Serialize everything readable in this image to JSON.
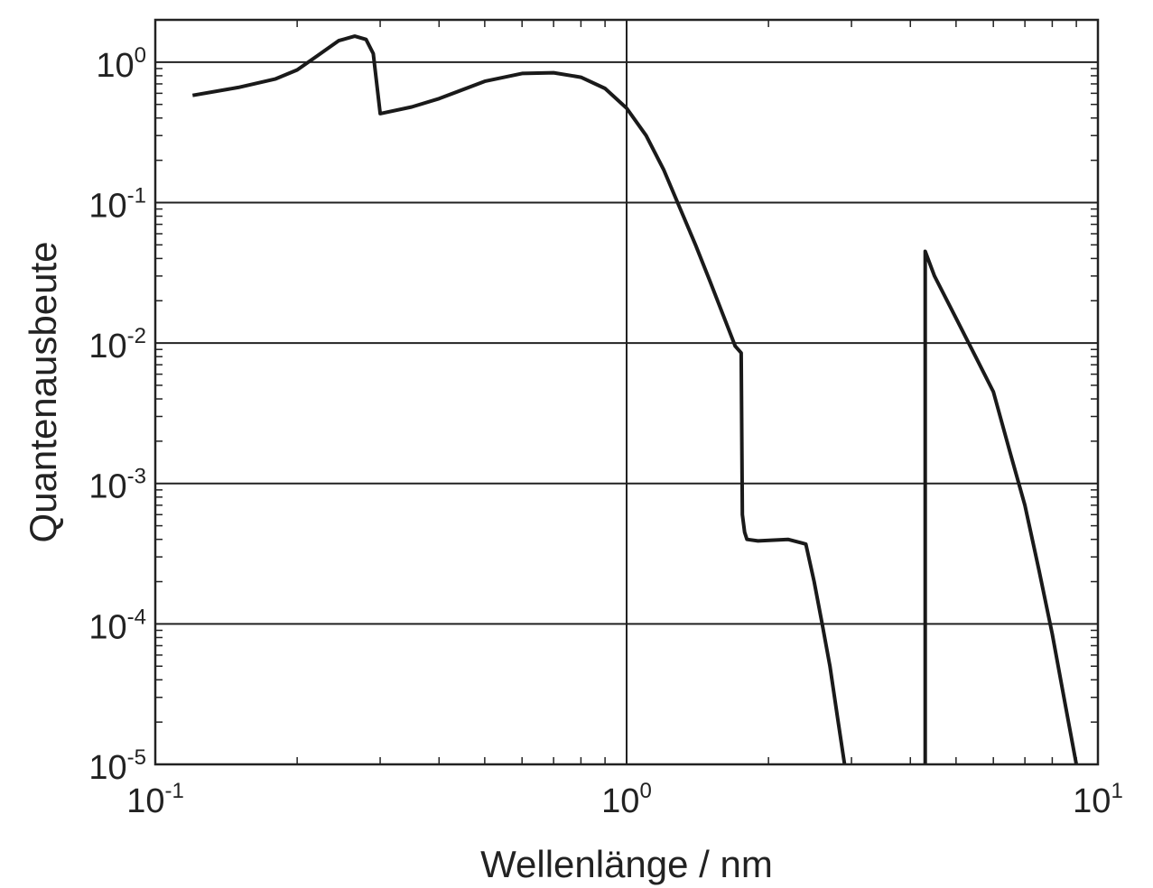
{
  "chart_data": {
    "type": "line",
    "xlabel": "Wellenlänge / nm",
    "ylabel": "Quantenausbeute",
    "x_scale": "log",
    "y_scale": "log",
    "xlim": [
      0.1,
      10
    ],
    "ylim": [
      1e-05,
      2
    ],
    "grid": "major",
    "x_ticks": [
      {
        "value": 0.1,
        "base": "10",
        "exp": "-1"
      },
      {
        "value": 1,
        "base": "10",
        "exp": "0"
      },
      {
        "value": 10,
        "base": "10",
        "exp": "1"
      }
    ],
    "y_ticks": [
      {
        "value": 1,
        "base": "10",
        "exp": "0"
      },
      {
        "value": 0.1,
        "base": "10",
        "exp": "-1"
      },
      {
        "value": 0.01,
        "base": "10",
        "exp": "-2"
      },
      {
        "value": 0.001,
        "base": "10",
        "exp": "-3"
      },
      {
        "value": 0.0001,
        "base": "10",
        "exp": "-4"
      },
      {
        "value": 1e-05,
        "base": "10",
        "exp": "-5"
      }
    ],
    "series": [
      {
        "color": "#1a1a1a",
        "x": [
          0.12,
          0.15,
          0.18,
          0.2,
          0.22,
          0.245,
          0.265,
          0.28,
          0.29,
          0.3,
          0.35,
          0.4,
          0.5,
          0.6,
          0.7,
          0.8,
          0.9,
          1.0,
          1.1,
          1.2,
          1.3,
          1.4,
          1.5,
          1.6,
          1.7,
          1.75,
          1.76,
          1.78,
          1.8,
          1.9,
          2.2,
          2.4,
          2.5,
          2.6,
          2.7,
          2.8,
          2.9
        ],
        "y": [
          0.58,
          0.66,
          0.76,
          0.88,
          1.1,
          1.42,
          1.53,
          1.45,
          1.15,
          0.43,
          0.48,
          0.55,
          0.73,
          0.83,
          0.84,
          0.78,
          0.65,
          0.47,
          0.3,
          0.17,
          0.09,
          0.05,
          0.028,
          0.016,
          0.0095,
          0.0085,
          0.0006,
          0.00045,
          0.0004,
          0.00039,
          0.0004,
          0.00037,
          0.0002,
          0.0001,
          5e-05,
          2.2e-05,
          1e-05
        ]
      },
      {
        "color": "#1a1a1a",
        "x": [
          4.3,
          4.3,
          4.5,
          5.0,
          5.5,
          6.0,
          6.5,
          7.0,
          7.5,
          8.0,
          8.5,
          9.0
        ],
        "y": [
          1e-05,
          0.045,
          0.03,
          0.015,
          0.008,
          0.0045,
          0.0017,
          0.0007,
          0.00024,
          8.5e-05,
          2.8e-05,
          1e-05
        ]
      }
    ]
  }
}
